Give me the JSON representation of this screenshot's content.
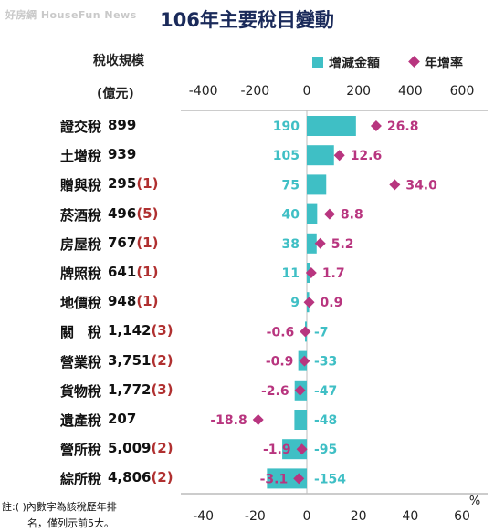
{
  "watermark": "好房網 HouseFun News",
  "chart_data": {
    "type": "bar",
    "title": "106年主要稅目變動",
    "table_header": {
      "scale_label": "稅收規模",
      "scale_unit": "(億元)"
    },
    "legend": [
      {
        "label": "增減金額",
        "color": "#3fbfc5",
        "marker": "square"
      },
      {
        "label": "年增率",
        "color": "#b8357f",
        "marker": "diamond"
      }
    ],
    "top_axis": {
      "ticks": [
        "-400",
        "-200",
        "0",
        "200",
        "400",
        "600"
      ],
      "range": [
        -400,
        600
      ]
    },
    "bottom_axis": {
      "ticks": [
        "-40",
        "-20",
        "0",
        "20",
        "40",
        "60"
      ],
      "range": [
        -40,
        60
      ],
      "unit": "%"
    },
    "rows": [
      {
        "name": "證交稅",
        "scale": "899",
        "rank": "",
        "change": 190,
        "change_label": "190",
        "rate": 26.8,
        "rate_label": "26.8"
      },
      {
        "name": "土增稅",
        "scale": "939",
        "rank": "",
        "change": 105,
        "change_label": "105",
        "rate": 12.6,
        "rate_label": "12.6"
      },
      {
        "name": "贈與稅",
        "scale": "295",
        "rank": "(1)",
        "change": 75,
        "change_label": "75",
        "rate": 34.0,
        "rate_label": "34.0"
      },
      {
        "name": "菸酒稅",
        "scale": "496",
        "rank": "(5)",
        "change": 40,
        "change_label": "40",
        "rate": 8.8,
        "rate_label": "8.8"
      },
      {
        "name": "房屋稅",
        "scale": "767",
        "rank": "(1)",
        "change": 38,
        "change_label": "38",
        "rate": 5.2,
        "rate_label": "5.2"
      },
      {
        "name": "牌照稅",
        "scale": "641",
        "rank": "(1)",
        "change": 11,
        "change_label": "11",
        "rate": 1.7,
        "rate_label": "1.7"
      },
      {
        "name": "地價稅",
        "scale": "948",
        "rank": "(1)",
        "change": 9,
        "change_label": "9",
        "rate": 0.9,
        "rate_label": "0.9"
      },
      {
        "name": "關　稅",
        "scale": "1,142",
        "rank": "(3)",
        "change": -7,
        "change_label": "-7",
        "rate": -0.6,
        "rate_label": "-0.6"
      },
      {
        "name": "營業稅",
        "scale": "3,751",
        "rank": "(2)",
        "change": -33,
        "change_label": "-33",
        "rate": -0.9,
        "rate_label": "-0.9"
      },
      {
        "name": "貨物稅",
        "scale": "1,772",
        "rank": "(3)",
        "change": -47,
        "change_label": "-47",
        "rate": -2.6,
        "rate_label": "-2.6"
      },
      {
        "name": "遺產稅",
        "scale": "207",
        "rank": "",
        "change": -48,
        "change_label": "-48",
        "rate": -18.8,
        "rate_label": "-18.8"
      },
      {
        "name": "營所稅",
        "scale": "5,009",
        "rank": "(2)",
        "change": -95,
        "change_label": "-95",
        "rate": -1.9,
        "rate_label": "-1.9"
      },
      {
        "name": "綜所稅",
        "scale": "4,806",
        "rank": "(2)",
        "change": -154,
        "change_label": "-154",
        "rate": -3.1,
        "rate_label": "-3.1"
      }
    ],
    "footnote": [
      "註:( )內數字為該稅歷年排",
      "名，僅列示前5大。"
    ]
  }
}
